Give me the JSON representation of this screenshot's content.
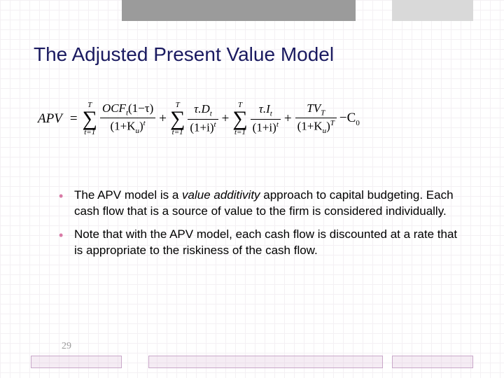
{
  "title": "The Adjusted Present Value Model",
  "formula": {
    "lhs": "APV",
    "term1": {
      "sum_top": "T",
      "sum_bot": "t=1",
      "num": "OCF",
      "num_sub": "t",
      "num_tail": "(1−τ)",
      "den_base": "(1+K",
      "den_sub": "u",
      "den_close": ")",
      "den_exp": "t"
    },
    "term2": {
      "sum_top": "T",
      "sum_bot": "t=1",
      "num_pre": "τ.D",
      "num_sub": "t",
      "den": "(1+i)",
      "den_exp": "t"
    },
    "term3": {
      "sum_top": "T",
      "sum_bot": "t=1",
      "num_pre": "τ.I",
      "num_sub": "t",
      "den": "(1+i)",
      "den_exp": "t"
    },
    "term4": {
      "num": "TV",
      "num_sub": "T",
      "den_base": "(1+K",
      "den_sub": "u",
      "den_close": ")",
      "den_exp": "T"
    },
    "final": "−C",
    "final_sub": "0"
  },
  "bullets": [
    {
      "pre": "The APV model is a ",
      "italic": "value additivity",
      "post": " approach to capital budgeting. Each cash flow that is a source of value to the firm is considered individually."
    },
    {
      "text": "Note that with the APV model, each cash flow is discounted at a rate that is appropriate to the riskiness of the cash flow."
    }
  ],
  "page_number": "29",
  "colors": {
    "title": "#1a1a60",
    "bullet_marker": "#d97aa6",
    "top_bar": "#9b9b9b",
    "top_bar_right": "#d9d9d9",
    "grid": "#f4f0f4",
    "bottom_border": "#c9a8c9",
    "page_num": "#9b9b9b"
  }
}
